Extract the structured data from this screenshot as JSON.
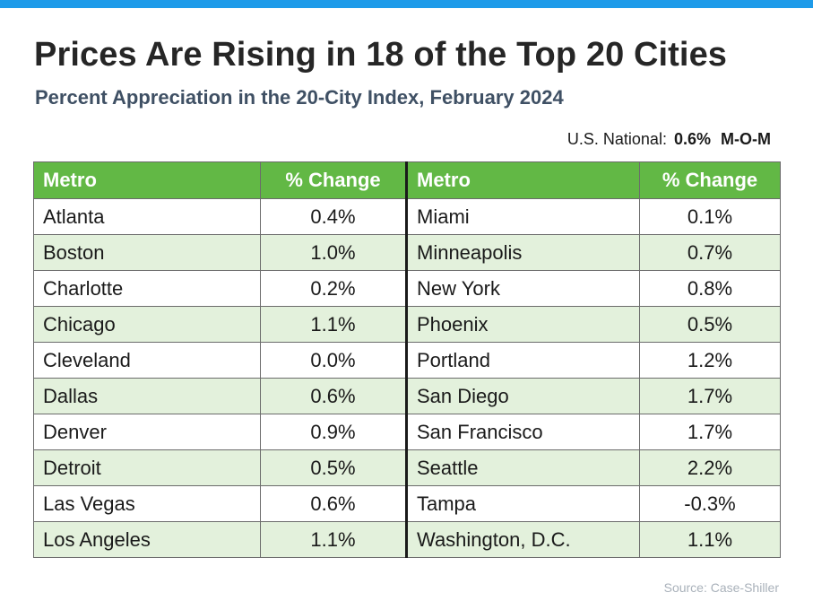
{
  "title": "Prices Are Rising in 18 of the Top 20 Cities",
  "subtitle": "Percent Appreciation in the 20-City Index, February 2024",
  "national": {
    "label": "U.S. National:",
    "value": "0.6%",
    "unit": "M-O-M"
  },
  "source": "Source: Case-Shiller",
  "colors": {
    "header_bg": "#62b845",
    "alt_row_bg": "#e3f1dc",
    "top_bar": "#1e9be9"
  },
  "chart_data": {
    "type": "table",
    "columns": [
      "Metro",
      "% Change",
      "Metro",
      "% Change"
    ],
    "left_rows": [
      {
        "metro": "Atlanta",
        "change": "0.4%"
      },
      {
        "metro": "Boston",
        "change": "1.0%"
      },
      {
        "metro": "Charlotte",
        "change": "0.2%"
      },
      {
        "metro": "Chicago",
        "change": "1.1%"
      },
      {
        "metro": "Cleveland",
        "change": "0.0%"
      },
      {
        "metro": "Dallas",
        "change": "0.6%"
      },
      {
        "metro": "Denver",
        "change": "0.9%"
      },
      {
        "metro": "Detroit",
        "change": "0.5%"
      },
      {
        "metro": "Las Vegas",
        "change": "0.6%"
      },
      {
        "metro": "Los Angeles",
        "change": "1.1%"
      }
    ],
    "right_rows": [
      {
        "metro": "Miami",
        "change": "0.1%"
      },
      {
        "metro": "Minneapolis",
        "change": "0.7%"
      },
      {
        "metro": "New York",
        "change": "0.8%"
      },
      {
        "metro": "Phoenix",
        "change": "0.5%"
      },
      {
        "metro": "Portland",
        "change": "1.2%"
      },
      {
        "metro": "San Diego",
        "change": "1.7%"
      },
      {
        "metro": "San Francisco",
        "change": "1.7%"
      },
      {
        "metro": "Seattle",
        "change": "2.2%"
      },
      {
        "metro": "Tampa",
        "change": "-0.3%"
      },
      {
        "metro": "Washington, D.C.",
        "change": "1.1%"
      }
    ]
  }
}
